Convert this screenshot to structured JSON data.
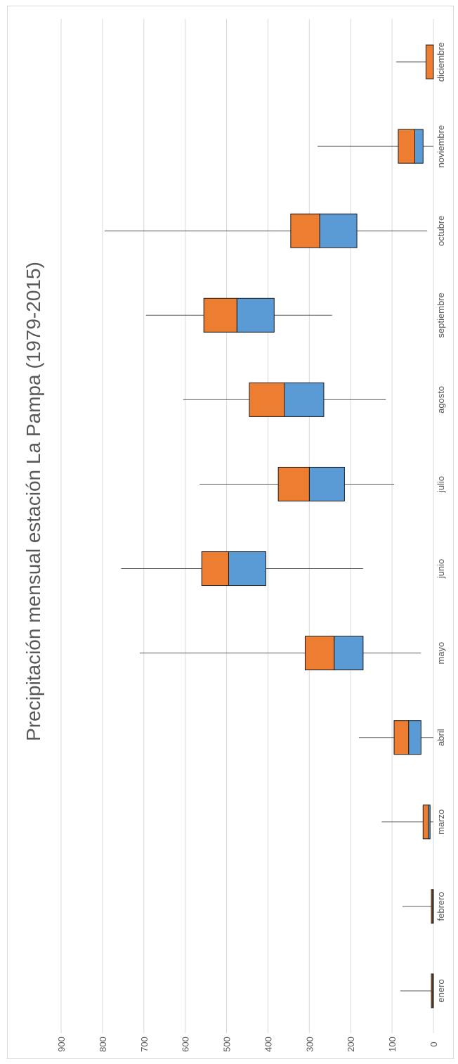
{
  "chart_data": {
    "type": "box",
    "orientation": "rotated",
    "title": "Precipitación mensual estación La Pampa (1979-2015)",
    "xlabel": "",
    "ylabel": "",
    "ylim": [
      0,
      900
    ],
    "yticks": [
      0,
      100,
      200,
      300,
      400,
      500,
      600,
      700,
      800,
      900
    ],
    "grid": true,
    "legend": "none",
    "colors": {
      "upper_box": "#ED7D31",
      "lower_box": "#5B9BD5",
      "whisker": "#595959",
      "grid": "#d9d9d9",
      "outline": "#1a1a1a"
    },
    "categories": [
      "enero",
      "febrero",
      "marzo",
      "abril",
      "mayo",
      "junio",
      "julio",
      "agosto",
      "septiembre",
      "octubre",
      "noviembre",
      "diciembre"
    ],
    "min": [
      0,
      0,
      0,
      0,
      30,
      170,
      95,
      115,
      245,
      15,
      0,
      0
    ],
    "q1": [
      0,
      0,
      8,
      30,
      170,
      405,
      215,
      265,
      385,
      185,
      25,
      0
    ],
    "median": [
      2,
      2,
      12,
      60,
      240,
      495,
      300,
      360,
      475,
      275,
      45,
      0
    ],
    "q3": [
      5,
      5,
      25,
      95,
      310,
      560,
      375,
      445,
      555,
      345,
      85,
      18
    ],
    "max": [
      80,
      75,
      125,
      180,
      710,
      755,
      565,
      605,
      695,
      795,
      280,
      90
    ]
  }
}
